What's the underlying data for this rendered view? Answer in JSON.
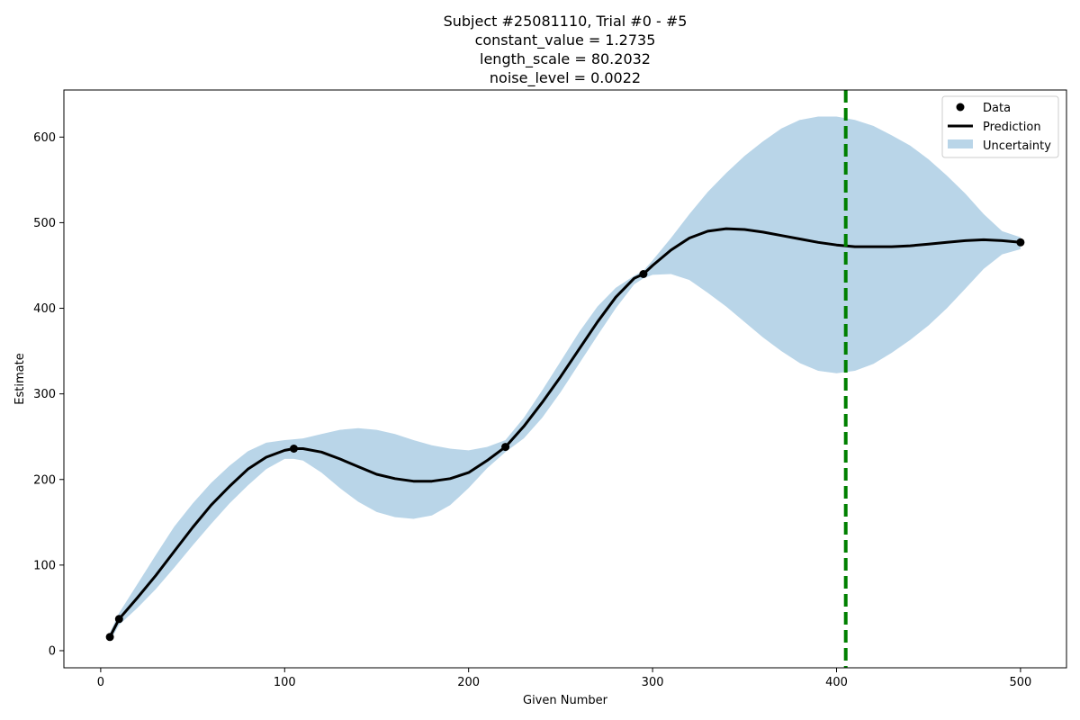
{
  "chart_data": {
    "type": "line",
    "title_lines": [
      "Subject #25081110, Trial #0 - #5",
      "constant_value = 1.2735",
      "length_scale = 80.2032",
      "noise_level = 0.0022"
    ],
    "xlabel": "Given Number",
    "ylabel": "Estimate",
    "xlim": [
      -20,
      525
    ],
    "ylim": [
      -20,
      655
    ],
    "xticks": [
      0,
      100,
      200,
      300,
      400,
      500
    ],
    "yticks": [
      0,
      100,
      200,
      300,
      400,
      500,
      600
    ],
    "data_points": [
      {
        "x": 5,
        "y": 16
      },
      {
        "x": 10,
        "y": 37
      },
      {
        "x": 105,
        "y": 236
      },
      {
        "x": 220,
        "y": 238
      },
      {
        "x": 295,
        "y": 440
      },
      {
        "x": 500,
        "y": 477
      }
    ],
    "prediction": {
      "x": [
        5,
        10,
        20,
        30,
        40,
        50,
        60,
        70,
        80,
        90,
        100,
        105,
        110,
        120,
        130,
        140,
        150,
        160,
        170,
        180,
        190,
        200,
        210,
        220,
        230,
        240,
        250,
        260,
        270,
        280,
        290,
        295,
        300,
        310,
        320,
        330,
        340,
        350,
        360,
        370,
        380,
        390,
        400,
        410,
        420,
        430,
        440,
        450,
        460,
        470,
        480,
        490,
        500
      ],
      "y": [
        16,
        37,
        62,
        88,
        116,
        144,
        170,
        192,
        212,
        226,
        234,
        236,
        236,
        232,
        224,
        215,
        206,
        201,
        198,
        198,
        201,
        208,
        222,
        238,
        262,
        290,
        320,
        352,
        384,
        413,
        435,
        440,
        450,
        468,
        482,
        490,
        493,
        492,
        489,
        485,
        481,
        477,
        474,
        472,
        472,
        472,
        473,
        475,
        477,
        479,
        480,
        479,
        477
      ]
    },
    "uncertainty": {
      "x": [
        5,
        10,
        20,
        30,
        40,
        50,
        60,
        70,
        80,
        90,
        100,
        105,
        110,
        120,
        130,
        140,
        150,
        160,
        170,
        180,
        190,
        200,
        210,
        220,
        230,
        240,
        250,
        260,
        270,
        280,
        290,
        295,
        300,
        310,
        320,
        330,
        340,
        350,
        360,
        370,
        380,
        390,
        400,
        410,
        420,
        430,
        440,
        450,
        460,
        470,
        480,
        490,
        500
      ],
      "lower": [
        11,
        30,
        50,
        72,
        97,
        123,
        148,
        172,
        193,
        212,
        224,
        224,
        222,
        208,
        190,
        174,
        162,
        156,
        154,
        158,
        170,
        190,
        213,
        232,
        248,
        272,
        302,
        335,
        368,
        400,
        428,
        435,
        439,
        440,
        433,
        418,
        402,
        384,
        366,
        350,
        336,
        327,
        324,
        327,
        335,
        348,
        363,
        380,
        400,
        423,
        446,
        463,
        469
      ],
      "upper": [
        21,
        44,
        78,
        112,
        145,
        172,
        196,
        216,
        233,
        243,
        246,
        247,
        248,
        253,
        258,
        260,
        258,
        253,
        246,
        240,
        236,
        234,
        238,
        246,
        272,
        304,
        338,
        372,
        402,
        424,
        438,
        444,
        456,
        482,
        510,
        536,
        558,
        578,
        595,
        610,
        620,
        624,
        624,
        620,
        613,
        602,
        590,
        574,
        555,
        534,
        510,
        490,
        483
      ]
    },
    "vline": {
      "x": 405,
      "color": "#008000",
      "style": "dashed"
    },
    "legend": {
      "position": "top-right",
      "entries": [
        "Data",
        "Prediction",
        "Uncertainty"
      ]
    },
    "colors": {
      "data": "#000000",
      "prediction": "#000000",
      "uncertainty": "#b9d5e8",
      "vline": "#008000"
    }
  }
}
